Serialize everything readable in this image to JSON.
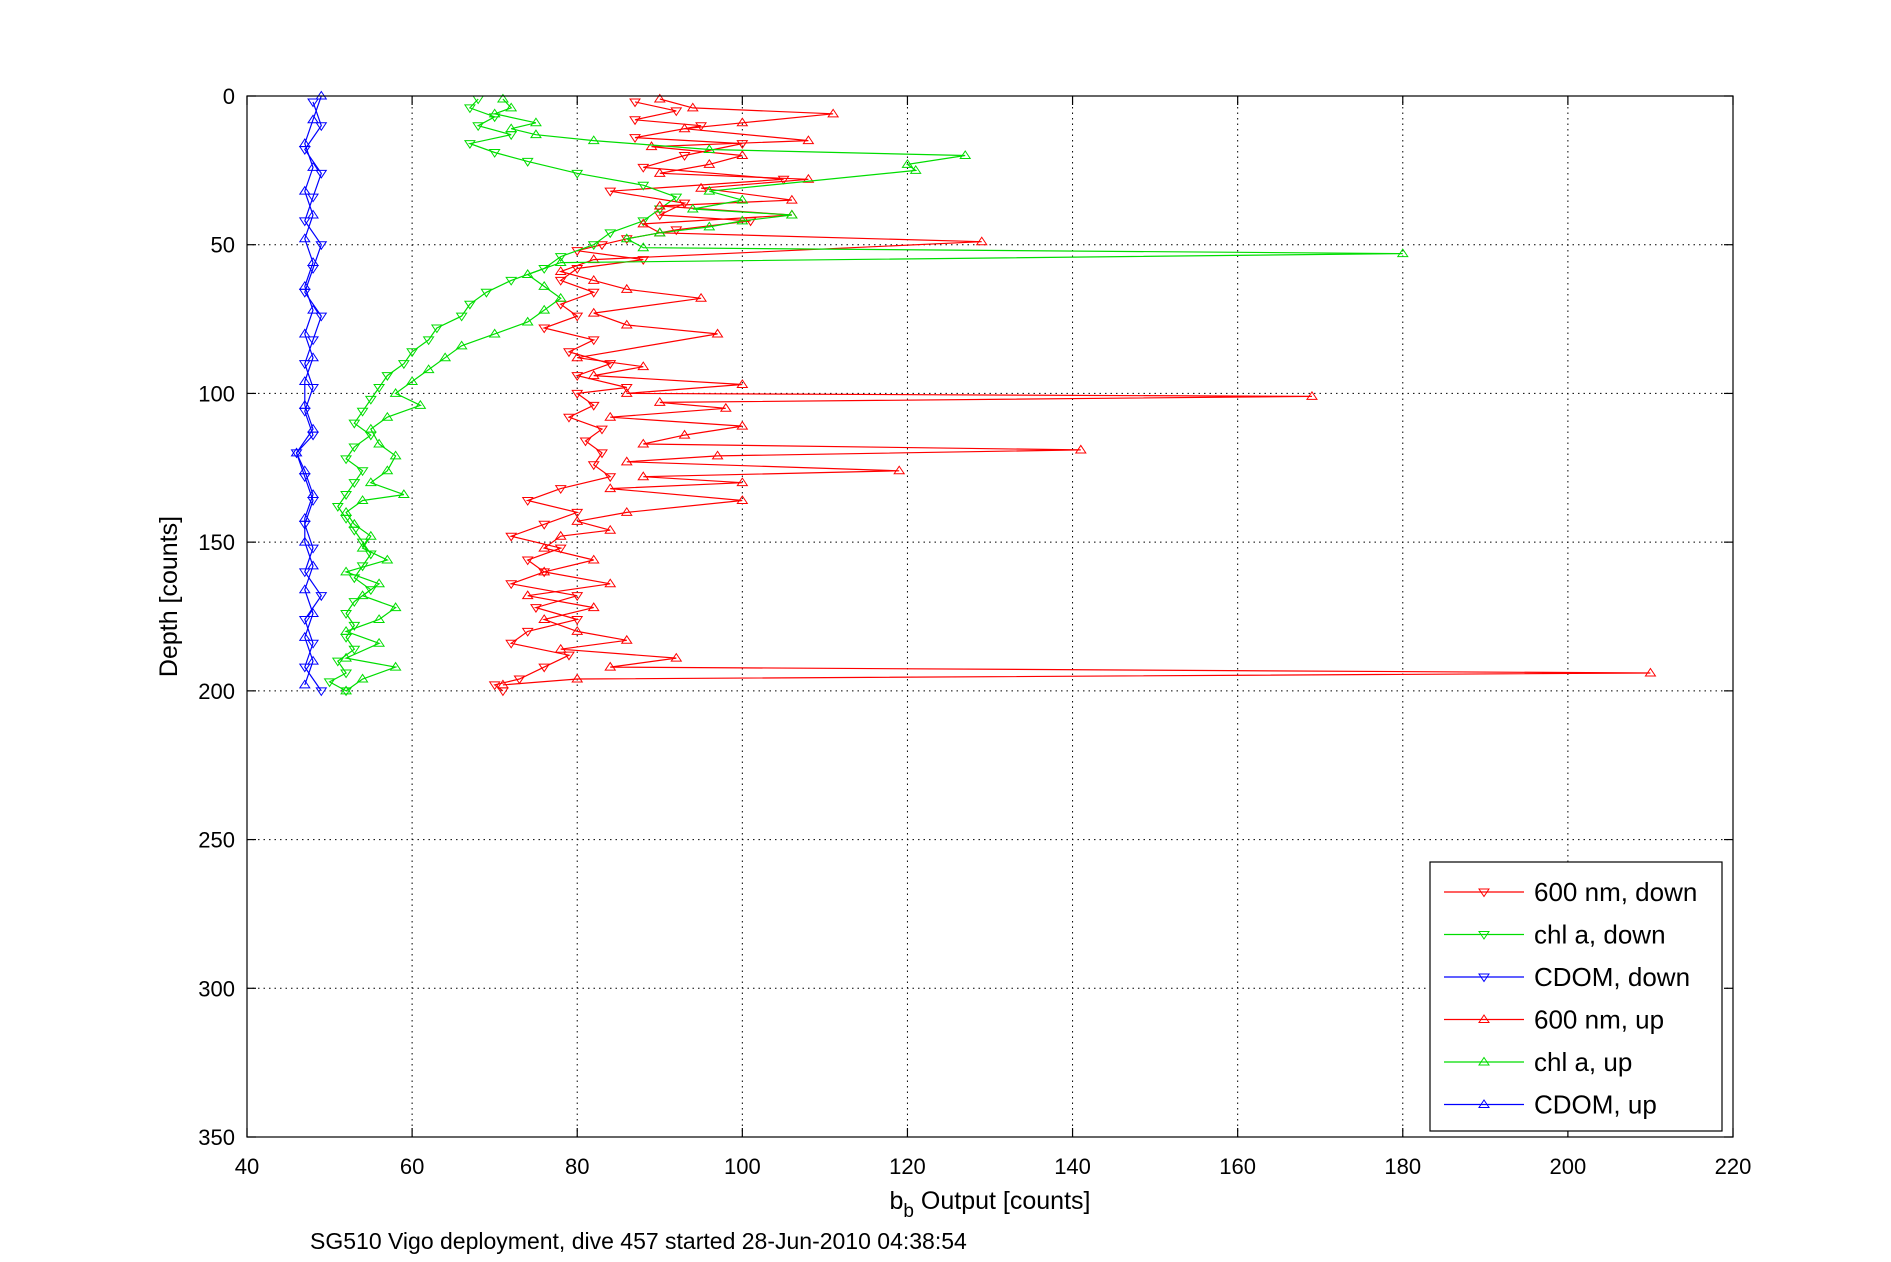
{
  "chart_data": {
    "type": "line",
    "title": "",
    "caption": "SG510 Vigo deployment, dive 457 started 28-Jun-2010 04:38:54",
    "xlabel_main": "b",
    "xlabel_sub": "b",
    "xlabel_rest": " Output [counts]",
    "ylabel": "Depth [counts]",
    "xlim": [
      40,
      220
    ],
    "ylim": [
      0,
      350
    ],
    "y_reversed": true,
    "grid": true,
    "legend_position": "bottom-right",
    "xticks": [
      "40",
      "60",
      "80",
      "100",
      "120",
      "140",
      "160",
      "180",
      "200",
      "220"
    ],
    "yticks": [
      "0",
      "50",
      "100",
      "150",
      "200",
      "250",
      "300",
      "350"
    ],
    "series": [
      {
        "name": "600 nm, down",
        "color": "#ff0000",
        "marker": "triangle-down",
        "points": [
          [
            87,
            2
          ],
          [
            92,
            5
          ],
          [
            87,
            8
          ],
          [
            95,
            10
          ],
          [
            87,
            14
          ],
          [
            100,
            16
          ],
          [
            93,
            20
          ],
          [
            88,
            24
          ],
          [
            105,
            28
          ],
          [
            84,
            32
          ],
          [
            93,
            36
          ],
          [
            90,
            40
          ],
          [
            101,
            42
          ],
          [
            92,
            45
          ],
          [
            86,
            48
          ],
          [
            83,
            50
          ],
          [
            80,
            52
          ],
          [
            88,
            55
          ],
          [
            80,
            58
          ],
          [
            78,
            62
          ],
          [
            82,
            66
          ],
          [
            78,
            70
          ],
          [
            80,
            74
          ],
          [
            76,
            78
          ],
          [
            82,
            82
          ],
          [
            79,
            86
          ],
          [
            84,
            90
          ],
          [
            80,
            94
          ],
          [
            86,
            98
          ],
          [
            80,
            100
          ],
          [
            82,
            104
          ],
          [
            79,
            108
          ],
          [
            83,
            112
          ],
          [
            81,
            116
          ],
          [
            83,
            120
          ],
          [
            82,
            124
          ],
          [
            84,
            128
          ],
          [
            78,
            132
          ],
          [
            74,
            136
          ],
          [
            80,
            140
          ],
          [
            76,
            144
          ],
          [
            72,
            148
          ],
          [
            78,
            152
          ],
          [
            74,
            156
          ],
          [
            76,
            160
          ],
          [
            72,
            164
          ],
          [
            80,
            168
          ],
          [
            75,
            172
          ],
          [
            80,
            176
          ],
          [
            74,
            180
          ],
          [
            72,
            184
          ],
          [
            79,
            188
          ],
          [
            76,
            192
          ],
          [
            73,
            196
          ],
          [
            70,
            198
          ],
          [
            71,
            200
          ]
        ]
      },
      {
        "name": "chl a, down",
        "color": "#00dd00",
        "marker": "triangle-down",
        "points": [
          [
            68,
            1
          ],
          [
            67,
            4
          ],
          [
            70,
            7
          ],
          [
            68,
            10
          ],
          [
            72,
            13
          ],
          [
            67,
            16
          ],
          [
            70,
            19
          ],
          [
            74,
            22
          ],
          [
            80,
            26
          ],
          [
            88,
            30
          ],
          [
            92,
            34
          ],
          [
            90,
            38
          ],
          [
            88,
            42
          ],
          [
            84,
            46
          ],
          [
            82,
            50
          ],
          [
            78,
            54
          ],
          [
            76,
            58
          ],
          [
            72,
            62
          ],
          [
            69,
            66
          ],
          [
            67,
            70
          ],
          [
            66,
            74
          ],
          [
            63,
            78
          ],
          [
            62,
            82
          ],
          [
            60,
            86
          ],
          [
            59,
            90
          ],
          [
            57,
            94
          ],
          [
            56,
            98
          ],
          [
            55,
            102
          ],
          [
            54,
            106
          ],
          [
            53,
            110
          ],
          [
            55,
            114
          ],
          [
            53,
            118
          ],
          [
            52,
            122
          ],
          [
            54,
            126
          ],
          [
            53,
            130
          ],
          [
            52,
            134
          ],
          [
            51,
            138
          ],
          [
            52,
            142
          ],
          [
            53,
            146
          ],
          [
            54,
            150
          ],
          [
            55,
            154
          ],
          [
            54,
            158
          ],
          [
            53,
            162
          ],
          [
            55,
            166
          ],
          [
            53,
            170
          ],
          [
            52,
            174
          ],
          [
            53,
            178
          ],
          [
            52,
            182
          ],
          [
            53,
            186
          ],
          [
            51,
            190
          ],
          [
            52,
            194
          ],
          [
            50,
            197
          ],
          [
            52,
            200
          ]
        ]
      },
      {
        "name": "CDOM, down",
        "color": "#0000ff",
        "marker": "triangle-down",
        "points": [
          [
            48,
            2
          ],
          [
            49,
            10
          ],
          [
            47,
            18
          ],
          [
            49,
            26
          ],
          [
            48,
            34
          ],
          [
            47,
            42
          ],
          [
            49,
            50
          ],
          [
            48,
            58
          ],
          [
            47,
            66
          ],
          [
            49,
            74
          ],
          [
            48,
            82
          ],
          [
            47,
            90
          ],
          [
            48,
            98
          ],
          [
            47,
            106
          ],
          [
            48,
            114
          ],
          [
            46,
            120
          ],
          [
            47,
            128
          ],
          [
            48,
            136
          ],
          [
            47,
            144
          ],
          [
            48,
            152
          ],
          [
            47,
            160
          ],
          [
            49,
            168
          ],
          [
            47,
            176
          ],
          [
            48,
            184
          ],
          [
            47,
            192
          ],
          [
            49,
            200
          ]
        ]
      },
      {
        "name": "600 nm, up",
        "color": "#ff0000",
        "marker": "triangle-up",
        "points": [
          [
            71,
            198
          ],
          [
            80,
            196
          ],
          [
            210,
            194
          ],
          [
            84,
            192
          ],
          [
            92,
            189
          ],
          [
            78,
            186
          ],
          [
            86,
            183
          ],
          [
            80,
            180
          ],
          [
            76,
            176
          ],
          [
            82,
            172
          ],
          [
            74,
            168
          ],
          [
            84,
            164
          ],
          [
            76,
            160
          ],
          [
            82,
            156
          ],
          [
            76,
            152
          ],
          [
            78,
            148
          ],
          [
            84,
            146
          ],
          [
            80,
            143
          ],
          [
            86,
            140
          ],
          [
            100,
            136
          ],
          [
            84,
            132
          ],
          [
            100,
            130
          ],
          [
            88,
            128
          ],
          [
            119,
            126
          ],
          [
            86,
            123
          ],
          [
            97,
            121
          ],
          [
            141,
            119
          ],
          [
            88,
            117
          ],
          [
            93,
            114
          ],
          [
            100,
            111
          ],
          [
            84,
            108
          ],
          [
            98,
            105
          ],
          [
            90,
            103
          ],
          [
            169,
            101
          ],
          [
            86,
            100
          ],
          [
            100,
            97
          ],
          [
            82,
            94
          ],
          [
            88,
            91
          ],
          [
            80,
            88
          ],
          [
            97,
            80
          ],
          [
            86,
            77
          ],
          [
            82,
            73
          ],
          [
            95,
            68
          ],
          [
            86,
            65
          ],
          [
            82,
            62
          ],
          [
            78,
            59
          ],
          [
            82,
            55
          ],
          [
            129,
            49
          ],
          [
            90,
            46
          ],
          [
            88,
            43
          ],
          [
            106,
            40
          ],
          [
            90,
            37
          ],
          [
            106,
            35
          ],
          [
            95,
            31
          ],
          [
            108,
            28
          ],
          [
            90,
            26
          ],
          [
            96,
            23
          ],
          [
            100,
            20
          ],
          [
            89,
            17
          ],
          [
            108,
            15
          ],
          [
            93,
            11
          ],
          [
            100,
            9
          ],
          [
            111,
            6
          ],
          [
            94,
            4
          ],
          [
            90,
            1
          ]
        ]
      },
      {
        "name": "chl a, up",
        "color": "#00dd00",
        "marker": "triangle-up",
        "points": [
          [
            52,
            200
          ],
          [
            54,
            196
          ],
          [
            58,
            192
          ],
          [
            52,
            189
          ],
          [
            56,
            184
          ],
          [
            52,
            180
          ],
          [
            56,
            176
          ],
          [
            58,
            172
          ],
          [
            54,
            168
          ],
          [
            56,
            164
          ],
          [
            52,
            160
          ],
          [
            57,
            156
          ],
          [
            54,
            152
          ],
          [
            55,
            148
          ],
          [
            53,
            144
          ],
          [
            52,
            140
          ],
          [
            54,
            136
          ],
          [
            59,
            134
          ],
          [
            55,
            130
          ],
          [
            57,
            126
          ],
          [
            58,
            121
          ],
          [
            56,
            117
          ],
          [
            55,
            112
          ],
          [
            57,
            108
          ],
          [
            61,
            104
          ],
          [
            58,
            100
          ],
          [
            60,
            96
          ],
          [
            62,
            92
          ],
          [
            64,
            88
          ],
          [
            66,
            84
          ],
          [
            70,
            80
          ],
          [
            74,
            76
          ],
          [
            76,
            72
          ],
          [
            78,
            68
          ],
          [
            76,
            64
          ],
          [
            74,
            60
          ],
          [
            78,
            56
          ],
          [
            180,
            53
          ],
          [
            88,
            51
          ],
          [
            86,
            48
          ],
          [
            90,
            46
          ],
          [
            96,
            44
          ],
          [
            100,
            42
          ],
          [
            106,
            40
          ],
          [
            94,
            38
          ],
          [
            100,
            35
          ],
          [
            96,
            32
          ],
          [
            121,
            25
          ],
          [
            120,
            23
          ],
          [
            127,
            20
          ],
          [
            96,
            18
          ],
          [
            82,
            15
          ],
          [
            75,
            13
          ],
          [
            72,
            11
          ],
          [
            75,
            9
          ],
          [
            70,
            6
          ],
          [
            72,
            4
          ],
          [
            71,
            1
          ]
        ]
      },
      {
        "name": "CDOM, up",
        "color": "#0000ff",
        "marker": "triangle-up",
        "points": [
          [
            47,
            198
          ],
          [
            48,
            190
          ],
          [
            47,
            182
          ],
          [
            48,
            174
          ],
          [
            47,
            166
          ],
          [
            48,
            158
          ],
          [
            47,
            150
          ],
          [
            47,
            142
          ],
          [
            48,
            134
          ],
          [
            47,
            126
          ],
          [
            46,
            120
          ],
          [
            48,
            112
          ],
          [
            47,
            104
          ],
          [
            47,
            96
          ],
          [
            48,
            88
          ],
          [
            47,
            80
          ],
          [
            48,
            72
          ],
          [
            47,
            64
          ],
          [
            48,
            56
          ],
          [
            47,
            48
          ],
          [
            48,
            40
          ],
          [
            47,
            32
          ],
          [
            48,
            24
          ],
          [
            47,
            16
          ],
          [
            48,
            8
          ],
          [
            49,
            0
          ]
        ]
      }
    ]
  }
}
